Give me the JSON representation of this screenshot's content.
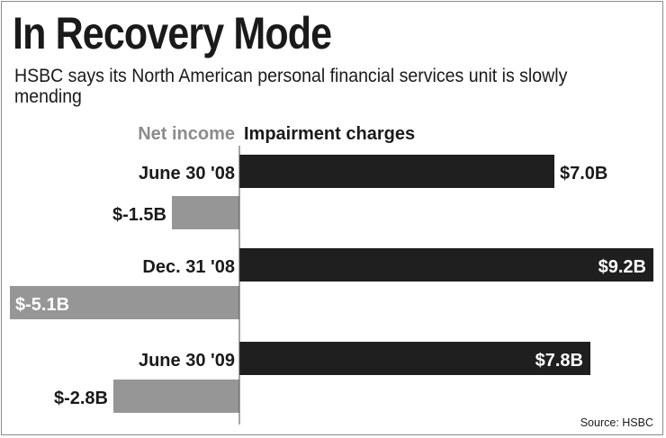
{
  "title": "In Recovery Mode",
  "subtitle": "HSBC says its North American personal financial services unit is slowly mending",
  "source": "Source: HSBC",
  "colors": {
    "impairment": "#1f1f1f",
    "net_income": "#969696",
    "text": "#1a1a1a",
    "negative_legend_text": "#8c8c8c"
  },
  "chart_data": {
    "type": "bar",
    "orientation": "horizontal",
    "categories": [
      "June 30 '08",
      "Dec. 31 '08",
      "June 30 '09"
    ],
    "series": [
      {
        "name": "Impairment charges",
        "values": [
          7.0,
          9.2,
          7.8
        ],
        "labels": [
          "$7.0B",
          "$9.2B",
          "$7.8B"
        ]
      },
      {
        "name": "Net income",
        "values": [
          -1.5,
          -5.1,
          -2.8
        ],
        "labels": [
          "$-1.5B",
          "$-5.1B",
          "$-2.8B"
        ]
      }
    ],
    "unit": "billions of dollars",
    "grid": false
  }
}
